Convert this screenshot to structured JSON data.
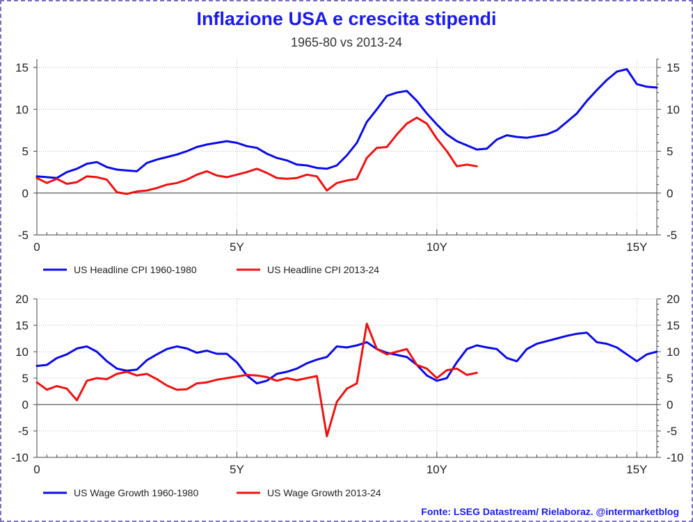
{
  "title": "Inflazione USA e crescita stipendi",
  "subtitle": "1965-80 vs 2013-24",
  "source": "Fonte: LSEG Datastream/ Rielaboraz. @intermarketblog",
  "colors": {
    "series_a": "#0a0ae6",
    "series_b": "#ee1111",
    "title": "#1a1aee"
  },
  "chart_data": [
    {
      "type": "line",
      "title": "",
      "xlabel": "",
      "ylabel": "",
      "xlim": [
        0,
        15.5
      ],
      "ylim": [
        -5,
        16
      ],
      "x_ticks": [
        0,
        5,
        10,
        15
      ],
      "x_tick_labels": [
        "0",
        "5Y",
        "10Y",
        "15Y"
      ],
      "y_ticks": [
        -5,
        0,
        5,
        10,
        15
      ],
      "y_tick_labels": [
        "-5",
        "0",
        "5",
        "10",
        "15"
      ],
      "grid": true,
      "legend": "bottom",
      "series": [
        {
          "name": "US Headline CPI 1960-1980",
          "color": "#0a0ae6",
          "x": [
            0,
            0.25,
            0.5,
            0.75,
            1.0,
            1.25,
            1.5,
            1.75,
            2.0,
            2.25,
            2.5,
            2.75,
            3.0,
            3.25,
            3.5,
            3.75,
            4.0,
            4.25,
            4.5,
            4.75,
            5.0,
            5.25,
            5.5,
            5.75,
            6.0,
            6.25,
            6.5,
            6.75,
            7.0,
            7.25,
            7.5,
            7.75,
            8.0,
            8.25,
            8.5,
            8.75,
            9.0,
            9.25,
            9.5,
            9.75,
            10.0,
            10.25,
            10.5,
            10.75,
            11.0,
            11.25,
            11.5,
            11.75,
            12.0,
            12.25,
            12.5,
            12.75,
            13.0,
            13.25,
            13.5,
            13.75,
            14.0,
            14.25,
            14.5,
            14.75,
            15.0,
            15.25,
            15.5
          ],
          "y": [
            2.0,
            1.9,
            1.8,
            2.5,
            2.9,
            3.5,
            3.7,
            3.1,
            2.8,
            2.7,
            2.6,
            3.6,
            4.0,
            4.3,
            4.6,
            5.0,
            5.5,
            5.8,
            6.0,
            6.2,
            6.0,
            5.6,
            5.4,
            4.7,
            4.2,
            3.9,
            3.4,
            3.3,
            3.0,
            2.9,
            3.3,
            4.5,
            6.0,
            8.5,
            10.0,
            11.6,
            12.0,
            12.2,
            11.0,
            9.5,
            8.2,
            7.0,
            6.2,
            5.7,
            5.2,
            5.3,
            6.4,
            6.9,
            6.7,
            6.6,
            6.8,
            7.0,
            7.5,
            8.5,
            9.5,
            11.0,
            12.3,
            13.5,
            14.5,
            14.8,
            13.0,
            12.7,
            12.6
          ]
        },
        {
          "name": "US Headline CPI 2013-24",
          "color": "#ee1111",
          "x": [
            0,
            0.25,
            0.5,
            0.75,
            1.0,
            1.25,
            1.5,
            1.75,
            2.0,
            2.25,
            2.5,
            2.75,
            3.0,
            3.25,
            3.5,
            3.75,
            4.0,
            4.25,
            4.5,
            4.75,
            5.0,
            5.25,
            5.5,
            5.75,
            6.0,
            6.25,
            6.5,
            6.75,
            7.0,
            7.25,
            7.5,
            7.75,
            8.0,
            8.25,
            8.5,
            8.75,
            9.0,
            9.25,
            9.5,
            9.75,
            10.0,
            10.25,
            10.5,
            10.75,
            11.0
          ],
          "y": [
            1.8,
            1.2,
            1.7,
            1.1,
            1.3,
            2.0,
            1.9,
            1.6,
            0.1,
            -0.1,
            0.2,
            0.3,
            0.6,
            1.0,
            1.2,
            1.6,
            2.2,
            2.6,
            2.1,
            1.9,
            2.2,
            2.5,
            2.9,
            2.4,
            1.8,
            1.7,
            1.8,
            2.2,
            2.0,
            0.3,
            1.2,
            1.5,
            1.7,
            4.2,
            5.4,
            5.5,
            7.0,
            8.3,
            9.0,
            8.3,
            6.5,
            5.0,
            3.2,
            3.4,
            3.2
          ]
        }
      ]
    },
    {
      "type": "line",
      "title": "",
      "xlabel": "",
      "ylabel": "",
      "xlim": [
        0,
        15.5
      ],
      "ylim": [
        -10,
        20
      ],
      "x_ticks": [
        0,
        5,
        10,
        15
      ],
      "x_tick_labels": [
        "0",
        "5Y",
        "10Y",
        "15Y"
      ],
      "y_ticks": [
        -10,
        -5,
        0,
        5,
        10,
        15,
        20
      ],
      "y_tick_labels": [
        "-10",
        "-5",
        "0",
        "5",
        "10",
        "15",
        "20"
      ],
      "grid": true,
      "legend": "bottom",
      "series": [
        {
          "name": "US Wage Growth 1960-1980",
          "color": "#0a0ae6",
          "x": [
            0,
            0.25,
            0.5,
            0.75,
            1.0,
            1.25,
            1.5,
            1.75,
            2.0,
            2.25,
            2.5,
            2.75,
            3.0,
            3.25,
            3.5,
            3.75,
            4.0,
            4.25,
            4.5,
            4.75,
            5.0,
            5.25,
            5.5,
            5.75,
            6.0,
            6.25,
            6.5,
            6.75,
            7.0,
            7.25,
            7.5,
            7.75,
            8.0,
            8.25,
            8.5,
            8.75,
            9.0,
            9.25,
            9.5,
            9.75,
            10.0,
            10.25,
            10.5,
            10.75,
            11.0,
            11.25,
            11.5,
            11.75,
            12.0,
            12.25,
            12.5,
            12.75,
            13.0,
            13.25,
            13.5,
            13.75,
            14.0,
            14.25,
            14.5,
            14.75,
            15.0,
            15.25,
            15.5
          ],
          "y": [
            7.3,
            7.5,
            8.8,
            9.5,
            10.6,
            11.0,
            10.0,
            8.2,
            6.8,
            6.4,
            6.6,
            8.4,
            9.5,
            10.5,
            11.0,
            10.6,
            9.8,
            10.2,
            9.6,
            9.6,
            8.0,
            5.5,
            4.0,
            4.5,
            5.8,
            6.2,
            6.8,
            7.8,
            8.5,
            9.0,
            11.0,
            10.8,
            11.2,
            11.8,
            10.5,
            9.8,
            9.4,
            9.0,
            7.5,
            5.5,
            4.5,
            5.0,
            8.0,
            10.5,
            11.2,
            10.8,
            10.5,
            8.8,
            8.2,
            10.5,
            11.5,
            12.0,
            12.5,
            13.0,
            13.4,
            13.6,
            11.8,
            11.5,
            10.8,
            9.5,
            8.2,
            9.5,
            10.0
          ]
        },
        {
          "name": "US Wage Growth 2013-24",
          "color": "#ee1111",
          "x": [
            0,
            0.25,
            0.5,
            0.75,
            1.0,
            1.25,
            1.5,
            1.75,
            2.0,
            2.25,
            2.5,
            2.75,
            3.0,
            3.25,
            3.5,
            3.75,
            4.0,
            4.25,
            4.5,
            4.75,
            5.0,
            5.25,
            5.5,
            5.75,
            6.0,
            6.25,
            6.5,
            6.75,
            7.0,
            7.25,
            7.5,
            7.75,
            8.0,
            8.25,
            8.5,
            8.75,
            9.0,
            9.25,
            9.5,
            9.75,
            10.0,
            10.25,
            10.5,
            10.75,
            11.0
          ],
          "y": [
            4.2,
            2.8,
            3.5,
            3.0,
            0.8,
            4.5,
            5.0,
            4.8,
            5.8,
            6.2,
            5.5,
            5.8,
            4.8,
            3.6,
            2.8,
            2.9,
            4.0,
            4.2,
            4.7,
            5.0,
            5.3,
            5.6,
            5.5,
            5.2,
            4.5,
            5.0,
            4.6,
            5.0,
            5.4,
            -6.0,
            0.5,
            3.0,
            4.0,
            15.3,
            10.5,
            9.5,
            10.0,
            10.5,
            7.5,
            6.8,
            5.0,
            6.5,
            6.8,
            5.6,
            6.0
          ]
        }
      ]
    }
  ]
}
